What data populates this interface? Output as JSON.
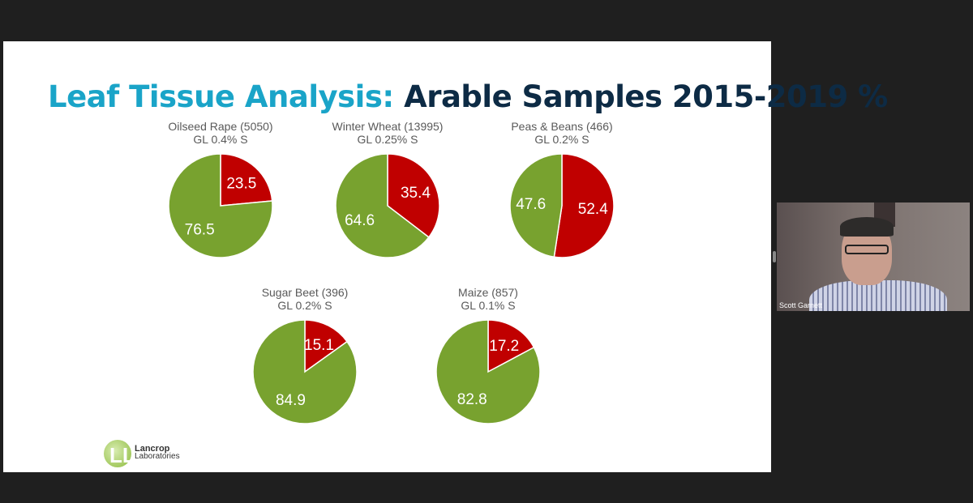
{
  "slide": {
    "title_part1": "Leaf Tissue Analysis:",
    "title_part2": "Arable Samples 2015-2019 %"
  },
  "colors": {
    "red": "#c00000",
    "green": "#78a22f",
    "title_cyan": "#1aa4c8",
    "title_navy": "#0d2b45"
  },
  "chart_data": [
    {
      "type": "pie",
      "title": "Oilseed Rape (5050)",
      "subtitle": "GL 0.4% S",
      "slices": [
        {
          "label": "23.5",
          "value": 23.5,
          "color": "#c00000"
        },
        {
          "label": "76.5",
          "value": 76.5,
          "color": "#78a22f"
        }
      ]
    },
    {
      "type": "pie",
      "title": "Winter Wheat (13995)",
      "subtitle": "GL 0.25% S",
      "slices": [
        {
          "label": "35.4",
          "value": 35.4,
          "color": "#c00000"
        },
        {
          "label": "64.6",
          "value": 64.6,
          "color": "#78a22f"
        }
      ]
    },
    {
      "type": "pie",
      "title": "Peas & Beans (466)",
      "subtitle": "GL 0.2% S",
      "slices": [
        {
          "label": "52.4",
          "value": 52.4,
          "color": "#c00000"
        },
        {
          "label": "47.6",
          "value": 47.6,
          "color": "#78a22f"
        }
      ]
    },
    {
      "type": "pie",
      "title": "Sugar Beet (396)",
      "subtitle": "GL 0.2% S",
      "slices": [
        {
          "label": "15.1",
          "value": 15.1,
          "color": "#c00000"
        },
        {
          "label": "84.9",
          "value": 84.9,
          "color": "#78a22f"
        }
      ]
    },
    {
      "type": "pie",
      "title": "Maize (857)",
      "subtitle": "GL 0.1% S",
      "slices": [
        {
          "label": "17.2",
          "value": 17.2,
          "color": "#c00000"
        },
        {
          "label": "82.8",
          "value": 82.8,
          "color": "#78a22f"
        }
      ]
    }
  ],
  "logo": {
    "line1": "Lancrop",
    "line2": "Laboratories",
    "mark": "LL"
  },
  "participant": {
    "name": "Scott Garnett"
  }
}
